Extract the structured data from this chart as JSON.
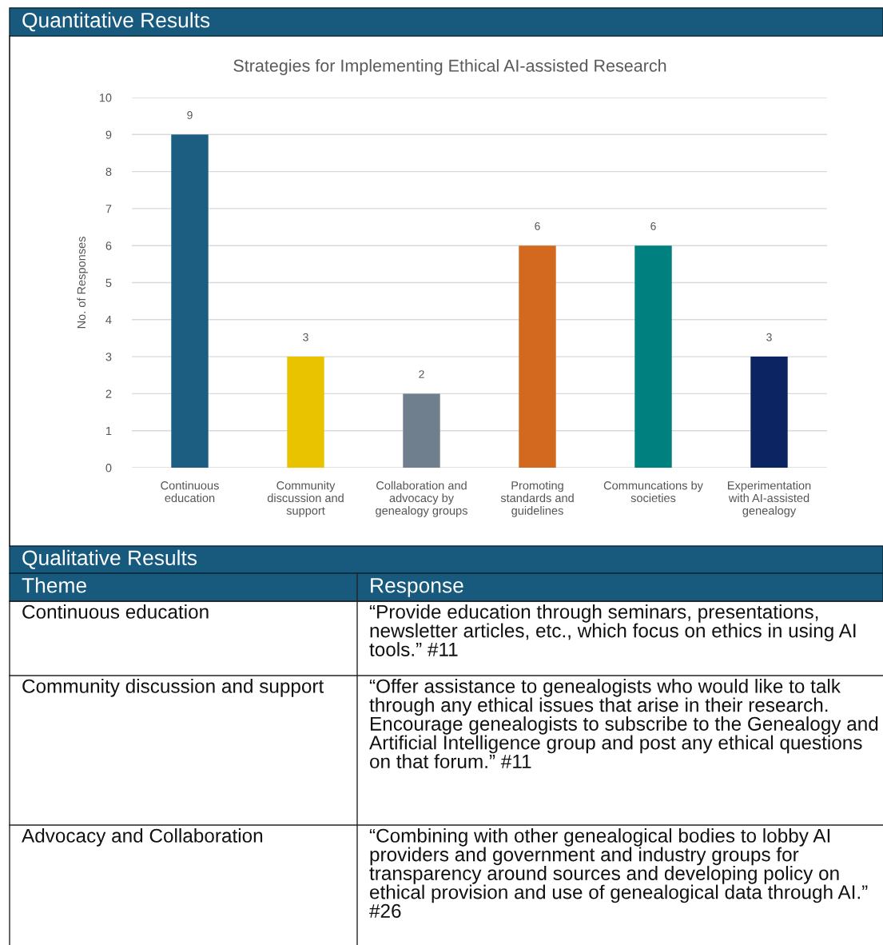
{
  "chart_data": [
    {
      "type": "bar",
      "title": "Quantitative Results",
      "subtitle": "Strategies for Implementing Ethical AI-assisted Research",
      "ylabel": "No. of Responses",
      "categories": [
        "Continuous\neducation",
        "Community\ndiscussion and\nsupport",
        "Collaboration and\nadvocacy by\ngenealogy groups",
        "Promoting\nstandards and\nguidelines",
        "Communcations by\nsocieties",
        "Experimentation\nwith AI-assisted\ngenealogy"
      ],
      "values": [
        9,
        3,
        2,
        6,
        6,
        3
      ],
      "colors": [
        "#1b5e82",
        "#e9c300",
        "#6f7f8e",
        "#d2691f",
        "#00807f",
        "#0c2461"
      ],
      "ylim": [
        0,
        10
      ],
      "yticks": [
        0,
        1,
        2,
        3,
        4,
        5,
        6,
        7,
        8,
        9,
        10
      ],
      "grid": "y",
      "data_labels": true
    },
    {
      "type": "other",
      "title": "Qualitative Results",
      "annotations": [
        "Theme",
        "Response",
        "Continuous education",
        "“Provide education through seminars, presentations, newsletter articles, etc., which focus on ethics in using AI tools.” #11",
        "Community discussion and support",
        "“Offer assistance to genealogists who would like to talk through any ethical issues that arise in their research.  Encourage genealogists to subscribe to the Genealogy and Artificial Intelligence group and post any ethical questions on that forum.” #11",
        "Advocacy and Collaboration",
        "“Combining with other genealogical bodies to lobby AI providers and government and industry groups for transparency around sources and developing policy on ethical provision and use of genealogical data through AI.” #26"
      ]
    }
  ]
}
